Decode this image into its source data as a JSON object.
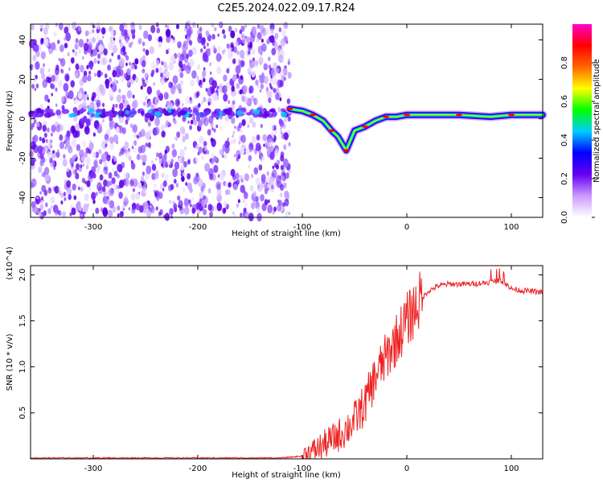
{
  "title": "C2E5.2024.022.09.17.R24",
  "chart_data": [
    {
      "type": "heatmap",
      "title": "C2E5.2024.022.09.17.R24",
      "xlabel": "Height of straight line (km)",
      "ylabel": "Frequency (Hz)",
      "xlim": [
        -360,
        130
      ],
      "ylim": [
        -50,
        48
      ],
      "x_ticks": [
        -300,
        -200,
        -100,
        0,
        100
      ],
      "x_tick_labels": [
        "-300",
        "-200",
        "-100",
        "0",
        "100"
      ],
      "y_ticks": [
        40,
        20,
        0,
        -20,
        -40
      ],
      "y_tick_labels": [
        "40",
        "20",
        "0",
        "-20",
        "-40"
      ],
      "colorbar": {
        "label": "Normalized spectral amplitude",
        "range": [
          0,
          1
        ],
        "ticks": [
          0.0,
          0.2,
          0.4,
          0.6,
          0.8
        ],
        "tick_labels": [
          "0.0",
          "0.2",
          "0.4",
          "0.6",
          "0.8"
        ],
        "colors": [
          "#ffffff",
          "#cc99ff",
          "#6600ee",
          "#0000ff",
          "#00ccff",
          "#00ff00",
          "#ffff00",
          "#ff6600",
          "#ff0000",
          "#ff00cc"
        ]
      },
      "noise_region_x": [
        -360,
        -112
      ],
      "ridge": [
        {
          "x": -112,
          "y": 5
        },
        {
          "x": -100,
          "y": 4
        },
        {
          "x": -90,
          "y": 2
        },
        {
          "x": -80,
          "y": -1
        },
        {
          "x": -72,
          "y": -6
        },
        {
          "x": -66,
          "y": -9
        },
        {
          "x": -58,
          "y": -16
        },
        {
          "x": -50,
          "y": -6
        },
        {
          "x": -40,
          "y": -4
        },
        {
          "x": -30,
          "y": -1
        },
        {
          "x": -20,
          "y": 1
        },
        {
          "x": -10,
          "y": 1
        },
        {
          "x": 0,
          "y": 2
        },
        {
          "x": 20,
          "y": 2
        },
        {
          "x": 50,
          "y": 2
        },
        {
          "x": 80,
          "y": 1
        },
        {
          "x": 100,
          "y": 2
        },
        {
          "x": 130,
          "y": 2
        }
      ]
    },
    {
      "type": "line",
      "xlabel": "Height of straight line (km)",
      "ylabel": "SNR (10 * v/v)",
      "y_scale_label": "(x10^4)",
      "xlim": [
        -360,
        130
      ],
      "ylim": [
        0,
        2.1
      ],
      "x_ticks": [
        -300,
        -200,
        -100,
        0,
        100
      ],
      "x_tick_labels": [
        "-300",
        "-200",
        "-100",
        "0",
        "100"
      ],
      "y_ticks": [
        0.5,
        1.0,
        1.5,
        2.0
      ],
      "y_tick_labels": [
        "0.5",
        "1.0",
        "1.5",
        "2.0"
      ],
      "color": "#ee2222",
      "series": [
        {
          "x": [
            -360,
            -300,
            -200,
            -120,
            -100,
            -90,
            -80,
            -70,
            -60,
            -50,
            -40,
            -30,
            -20,
            -10,
            0,
            10,
            20,
            30,
            40,
            60,
            80,
            90,
            100,
            110,
            130
          ],
          "values": [
            0.01,
            0.01,
            0.01,
            0.01,
            0.03,
            0.08,
            0.15,
            0.22,
            0.3,
            0.42,
            0.6,
            0.9,
            1.1,
            1.3,
            1.5,
            1.68,
            1.82,
            1.88,
            1.9,
            1.9,
            1.92,
            1.94,
            1.85,
            1.83,
            1.81
          ]
        }
      ]
    }
  ]
}
